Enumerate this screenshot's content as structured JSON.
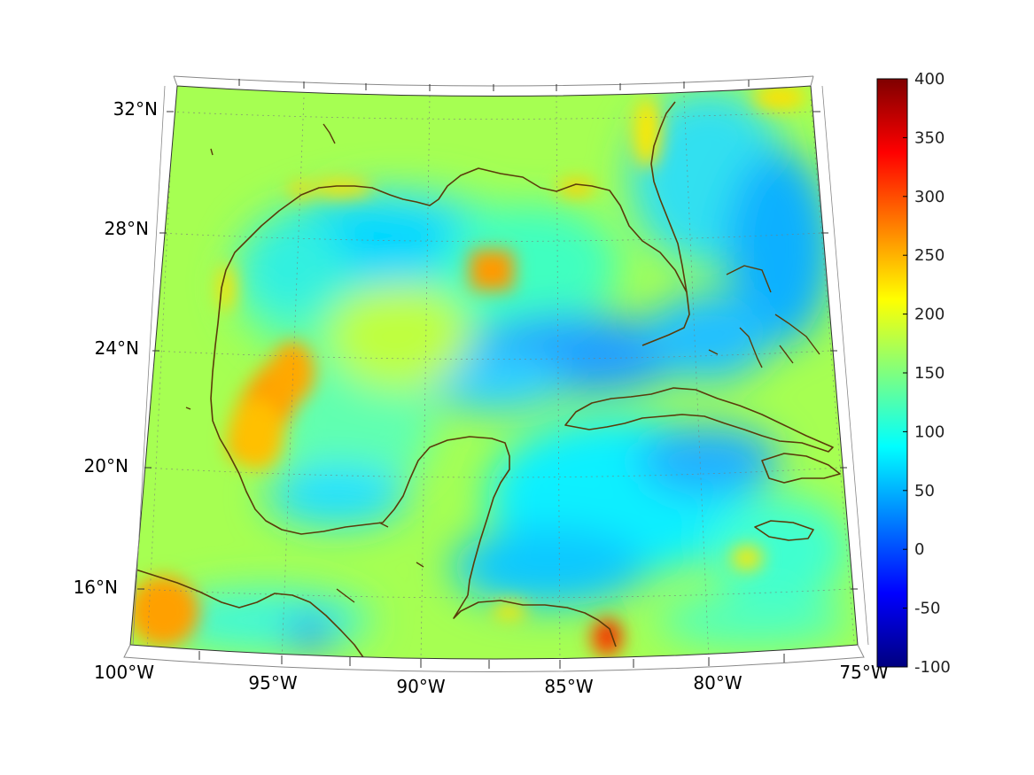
{
  "colorbar": {
    "min": -100,
    "max": 400,
    "ticks": [
      "400",
      "350",
      "300",
      "250",
      "200",
      "150",
      "100",
      "50",
      "0",
      "-50",
      "-100"
    ],
    "colormap": "jet",
    "colors": [
      "#00007f",
      "#0000ff",
      "#007fff",
      "#00ffff",
      "#7fff7f",
      "#ffff00",
      "#ff7f00",
      "#ff0000",
      "#7f0000"
    ]
  },
  "map": {
    "longitude_labels": [
      "100°W",
      "95°W",
      "90°W",
      "85°W",
      "80°W",
      "75°W"
    ],
    "latitude_labels": [
      "32°N",
      "28°N",
      "24°N",
      "20°N",
      "16°N"
    ],
    "lon_range": [
      -100,
      -75
    ],
    "lat_range": [
      14,
      33
    ],
    "coastline_color": "#5a3b0a",
    "grid": true
  }
}
